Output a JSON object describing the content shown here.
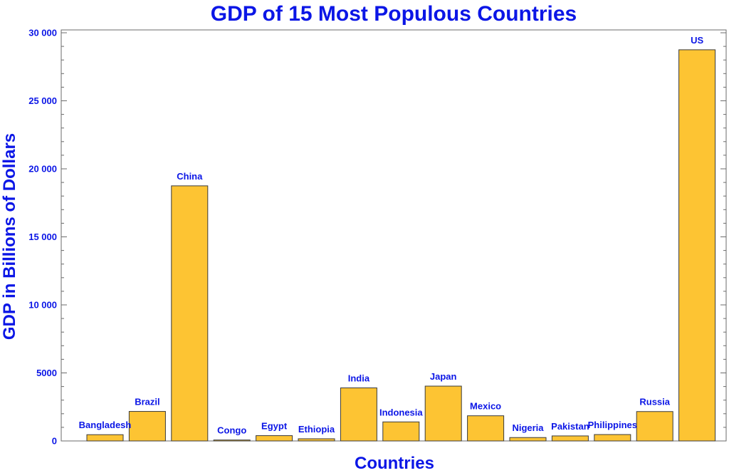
{
  "chart_data": {
    "type": "bar",
    "title": "GDP of 15 Most Populous Countries",
    "xlabel": "Countries",
    "ylabel": "GDP in Billions of Dollars",
    "ylim": [
      0,
      30000
    ],
    "yticks": [
      0,
      5000,
      10000,
      15000,
      20000,
      25000,
      30000
    ],
    "ytick_labels": [
      "0",
      "5000",
      "10 000",
      "15 000",
      "20 000",
      "25 000",
      "30 000"
    ],
    "grid": false,
    "bar_color": "#fdc433",
    "text_color": "#0b16e6",
    "categories": [
      "Bangladesh",
      "Brazil",
      "China",
      "Congo",
      "Egypt",
      "Ethiopia",
      "India",
      "Indonesia",
      "Japan",
      "Mexico",
      "Nigeria",
      "Pakistan",
      "Philippines",
      "Russia",
      "US"
    ],
    "values": [
      460,
      2170,
      18750,
      70,
      390,
      160,
      3900,
      1400,
      4030,
      1850,
      250,
      370,
      470,
      2160,
      28750
    ]
  }
}
